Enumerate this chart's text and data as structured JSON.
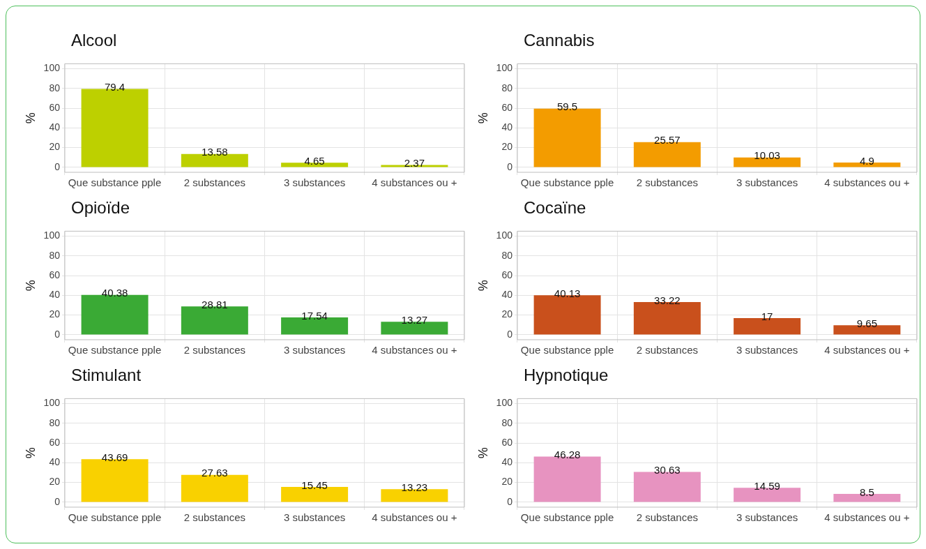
{
  "chart_data": [
    {
      "type": "bar",
      "title": "Alcool",
      "ylabel": "%",
      "categories": [
        "Que substance pple",
        "2 substances",
        "3 substances",
        "4 substances ou +"
      ],
      "values": [
        79.4,
        13.58,
        4.65,
        2.37
      ],
      "color": "#bdd000",
      "ylim": [
        -5,
        105
      ],
      "yticks": [
        0,
        20,
        40,
        60,
        80,
        100
      ],
      "grid": true,
      "data_labels": true
    },
    {
      "type": "bar",
      "title": "Cannabis",
      "ylabel": "%",
      "categories": [
        "Que substance pple",
        "2 substances",
        "3 substances",
        "4 substances ou +"
      ],
      "values": [
        59.5,
        25.57,
        10.03,
        4.9
      ],
      "color": "#f39c00",
      "ylim": [
        -5,
        105
      ],
      "yticks": [
        0,
        20,
        40,
        60,
        80,
        100
      ],
      "grid": true,
      "data_labels": true
    },
    {
      "type": "bar",
      "title": "Opioïde",
      "ylabel": "%",
      "categories": [
        "Que substance pple",
        "2 substances",
        "3 substances",
        "4 substances ou +"
      ],
      "values": [
        40.38,
        28.81,
        17.54,
        13.27
      ],
      "color": "#3aaa35",
      "ylim": [
        -5,
        105
      ],
      "yticks": [
        0,
        20,
        40,
        60,
        80,
        100
      ],
      "grid": true,
      "data_labels": true
    },
    {
      "type": "bar",
      "title": "Cocaïne",
      "ylabel": "%",
      "categories": [
        "Que substance pple",
        "2 substances",
        "3 substances",
        "4 substances ou +"
      ],
      "values": [
        40.13,
        33.22,
        17,
        9.65
      ],
      "color": "#c9501c",
      "ylim": [
        -5,
        105
      ],
      "yticks": [
        0,
        20,
        40,
        60,
        80,
        100
      ],
      "grid": true,
      "data_labels": true
    },
    {
      "type": "bar",
      "title": "Stimulant",
      "ylabel": "%",
      "categories": [
        "Que substance pple",
        "2 substances",
        "3 substances",
        "4 substances ou +"
      ],
      "values": [
        43.69,
        27.63,
        15.45,
        13.23
      ],
      "color": "#f9d100",
      "ylim": [
        -5,
        105
      ],
      "yticks": [
        0,
        20,
        40,
        60,
        80,
        100
      ],
      "grid": true,
      "data_labels": true
    },
    {
      "type": "bar",
      "title": "Hypnotique",
      "ylabel": "%",
      "categories": [
        "Que substance pple",
        "2 substances",
        "3 substances",
        "4 substances ou +"
      ],
      "values": [
        46.28,
        30.63,
        14.59,
        8.5
      ],
      "color": "#e793c0",
      "ylim": [
        -5,
        105
      ],
      "yticks": [
        0,
        20,
        40,
        60,
        80,
        100
      ],
      "grid": true,
      "data_labels": true
    }
  ]
}
